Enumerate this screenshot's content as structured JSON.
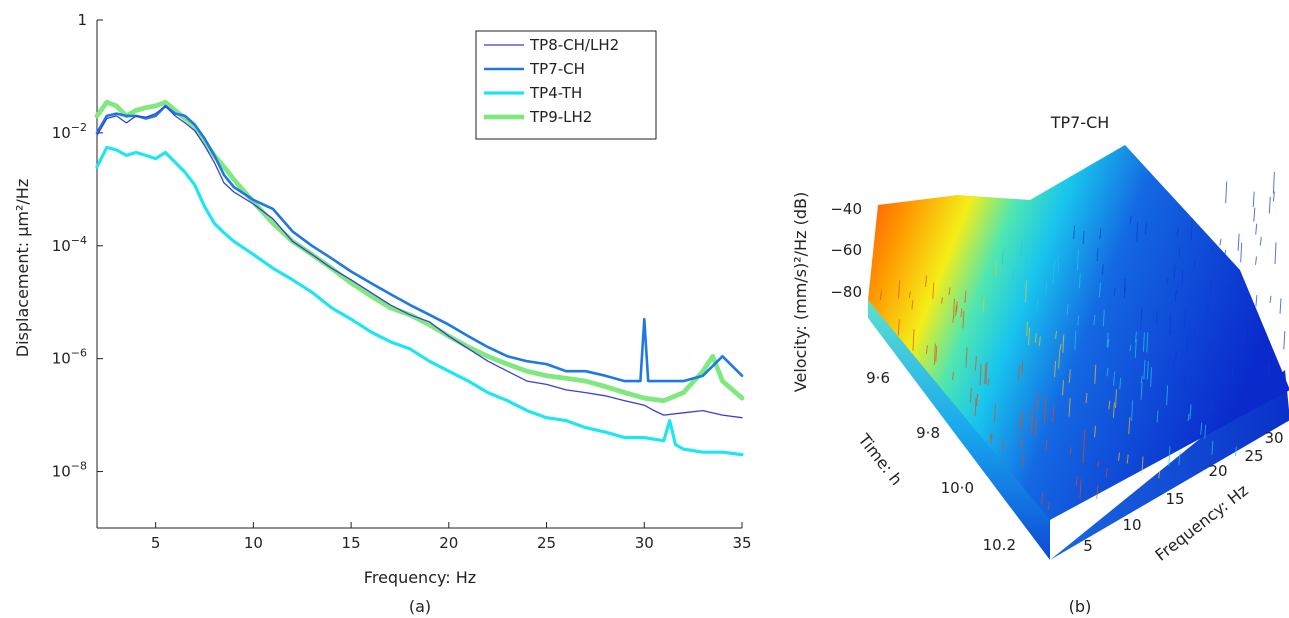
{
  "chart_data": [
    {
      "type": "line",
      "panel_label": "(a)",
      "xlabel": "Frequency: Hz",
      "ylabel": "Displacement: µm²/Hz",
      "xlim": [
        2,
        35
      ],
      "ylim": [
        1e-09,
        1
      ],
      "yscale": "log",
      "grid": false,
      "legend_position": "top-right",
      "x_ticks": [
        {
          "value": 5,
          "label": "5"
        },
        {
          "value": 10,
          "label": "10"
        },
        {
          "value": 15,
          "label": "15"
        },
        {
          "value": 20,
          "label": "20"
        },
        {
          "value": 25,
          "label": "25"
        },
        {
          "value": 30,
          "label": "30"
        },
        {
          "value": 35,
          "label": "35"
        }
      ],
      "y_ticks": [
        {
          "value": 1,
          "base": "1",
          "exp": ""
        },
        {
          "value": 0.01,
          "base": "10",
          "exp": "−2"
        },
        {
          "value": 0.0001,
          "base": "10",
          "exp": "−4"
        },
        {
          "value": 1e-06,
          "base": "10",
          "exp": "−6"
        },
        {
          "value": 1e-08,
          "base": "10",
          "exp": "−8"
        }
      ],
      "series": [
        {
          "name": "TP8-CH/LH2",
          "color": "#3a3fd6",
          "x": [
            2,
            2.5,
            3,
            3.5,
            4,
            4.5,
            5,
            5.5,
            6,
            6.5,
            7,
            7.5,
            8,
            8.5,
            9,
            10,
            11,
            12,
            13,
            14,
            15,
            16,
            17,
            18,
            19,
            20,
            21,
            22,
            23,
            24,
            25,
            26,
            27,
            28,
            29,
            30,
            30.5,
            31,
            32,
            33,
            34,
            35
          ],
          "y": [
            0.009,
            0.018,
            0.02,
            0.015,
            0.02,
            0.019,
            0.022,
            0.03,
            0.02,
            0.015,
            0.011,
            0.006,
            0.003,
            0.0013,
            0.0009,
            0.00055,
            0.0003,
            0.00012,
            7e-05,
            4e-05,
            2.5e-05,
            1.5e-05,
            9e-06,
            6e-06,
            4.5e-06,
            2.5e-06,
            1.5e-06,
            9e-07,
            6e-07,
            4e-07,
            3.5e-07,
            2.8e-07,
            2.5e-07,
            2.2e-07,
            1.8e-07,
            1.5e-07,
            1.2e-07,
            1e-07,
            1.1e-07,
            1.2e-07,
            1e-07,
            9e-08
          ]
        },
        {
          "name": "TP7-CH",
          "color": "#1e78e6",
          "x": [
            2,
            2.5,
            3,
            3.5,
            4,
            4.5,
            5,
            5.5,
            6,
            6.5,
            7,
            7.5,
            8,
            8.5,
            9,
            10,
            11,
            12,
            13,
            14,
            15,
            16,
            17,
            18,
            19,
            20,
            21,
            22,
            23,
            24,
            25,
            26,
            27,
            28,
            29,
            29.8,
            30,
            30.2,
            31,
            32,
            33,
            34,
            35
          ],
          "y": [
            0.01,
            0.02,
            0.022,
            0.02,
            0.02,
            0.018,
            0.02,
            0.03,
            0.022,
            0.02,
            0.014,
            0.008,
            0.004,
            0.0018,
            0.0011,
            0.00065,
            0.00045,
            0.00018,
            0.0001,
            6e-05,
            3.5e-05,
            2.2e-05,
            1.4e-05,
            9e-06,
            6e-06,
            4e-06,
            2.5e-06,
            1.6e-06,
            1.1e-06,
            9e-07,
            8e-07,
            6e-07,
            6e-07,
            5e-07,
            4e-07,
            4e-07,
            5e-06,
            4e-07,
            4e-07,
            4e-07,
            5e-07,
            1.1e-06,
            5e-07
          ]
        },
        {
          "name": "TP4-TH",
          "color": "#1ee6f0",
          "x": [
            2,
            2.5,
            3,
            3.5,
            4,
            4.5,
            5,
            5.5,
            6,
            6.5,
            7,
            7.5,
            8,
            8.5,
            9,
            10,
            11,
            12,
            13,
            14,
            15,
            16,
            17,
            18,
            19,
            20,
            21,
            22,
            23,
            24,
            25,
            26,
            27,
            28,
            29,
            30,
            31,
            31.3,
            31.6,
            32,
            33,
            34,
            35
          ],
          "y": [
            0.0025,
            0.0055,
            0.005,
            0.004,
            0.0045,
            0.004,
            0.0035,
            0.0045,
            0.003,
            0.002,
            0.0012,
            0.0005,
            0.00025,
            0.00017,
            0.00012,
            7e-05,
            4e-05,
            2.5e-05,
            1.5e-05,
            8e-06,
            5e-06,
            3e-06,
            2e-06,
            1.5e-06,
            9e-07,
            6e-07,
            4e-07,
            2.5e-07,
            1.8e-07,
            1.2e-07,
            9e-08,
            8e-08,
            6e-08,
            5e-08,
            4e-08,
            4e-08,
            3.5e-08,
            8e-08,
            3e-08,
            2.5e-08,
            2.2e-08,
            2.2e-08,
            2e-08
          ]
        },
        {
          "name": "TP9-LH2",
          "color": "#7fe87f",
          "x": [
            2,
            2.5,
            3,
            3.5,
            4,
            4.5,
            5,
            5.5,
            6,
            6.5,
            7,
            7.5,
            8,
            8.5,
            9,
            10,
            11,
            12,
            13,
            14,
            15,
            16,
            17,
            18,
            19,
            20,
            21,
            22,
            23,
            24,
            25,
            26,
            27,
            28,
            29,
            30,
            31,
            32,
            33,
            33.5,
            34,
            35
          ],
          "y": [
            0.02,
            0.035,
            0.03,
            0.02,
            0.025,
            0.028,
            0.03,
            0.035,
            0.025,
            0.018,
            0.013,
            0.007,
            0.004,
            0.0025,
            0.0015,
            0.0006,
            0.00025,
            0.00012,
            7e-05,
            4e-05,
            2.2e-05,
            1.3e-05,
            8e-06,
            6e-06,
            4e-06,
            2.5e-06,
            1.6e-06,
            1.1e-06,
            8e-07,
            6e-07,
            5e-07,
            4.5e-07,
            4e-07,
            3.2e-07,
            2.5e-07,
            2e-07,
            1.8e-07,
            2.5e-07,
            6e-07,
            1.1e-06,
            4e-07,
            2e-07
          ]
        }
      ]
    },
    {
      "type": "surface",
      "panel_label": "(b)",
      "title": "TP7-CH",
      "xlabel": "Frequency: Hz",
      "ylabel": "Time: h",
      "zlabel": "Velocity: (mm/s)²/Hz (dB)",
      "x_ticks": [
        "5",
        "10",
        "15",
        "20",
        "25",
        "30"
      ],
      "y_ticks": [
        "9·6",
        "9·8",
        "10·0",
        "10.2"
      ],
      "z_ticks": [
        "−40",
        "−60",
        "−80"
      ],
      "colormap": "jet"
    }
  ]
}
